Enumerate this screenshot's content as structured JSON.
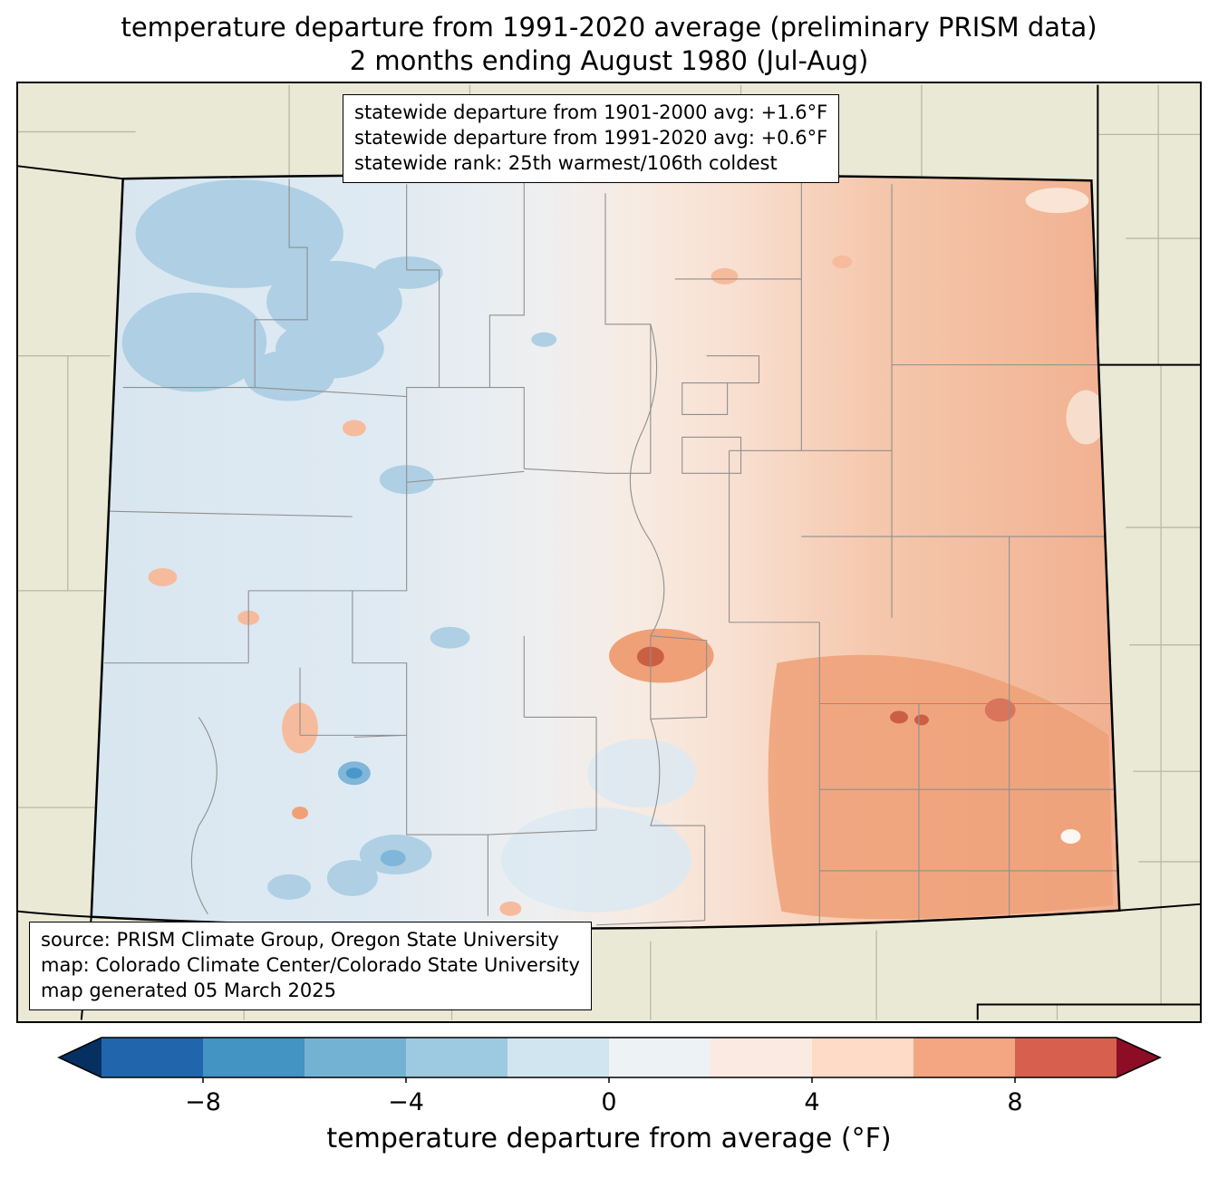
{
  "title": {
    "line1": "temperature departure from 1991-2020 average (preliminary PRISM data)",
    "line2": "2 months ending August 1980 (Jul-Aug)"
  },
  "stats_box": {
    "lines": [
      "statewide departure from 1901-2000 avg: +1.6°F",
      "statewide departure from 1991-2020 avg: +0.6°F",
      "statewide rank: 25th warmest/106th coldest"
    ]
  },
  "source_box": {
    "lines": [
      "source: PRISM Climate Group, Oregon State University",
      "map: Colorado Climate Center/Colorado State University",
      "map generated 05 March 2025"
    ]
  },
  "colorbar": {
    "label": "temperature departure from average (°F)",
    "range": [
      -10,
      10
    ],
    "ticks": [
      {
        "value": -8,
        "label": "−8"
      },
      {
        "value": -4,
        "label": "−4"
      },
      {
        "value": 0,
        "label": "0"
      },
      {
        "value": 4,
        "label": "4"
      },
      {
        "value": 8,
        "label": "8"
      }
    ],
    "segment_colors": [
      "#2166ac",
      "#4393c3",
      "#74b2d4",
      "#9ecae1",
      "#d1e5f0",
      "#edf2f5",
      "#fbeae1",
      "#fddbc7",
      "#f4a582",
      "#d6604d"
    ],
    "left_arrow_color": "#053061",
    "right_arrow_color": "#8c0d25"
  },
  "map": {
    "region": "Colorado with surrounding state county lines",
    "colors": {
      "bg_beige": "#e9e9d6",
      "outer_line": "#b9b9a6",
      "county_line": "#8f8f8f",
      "state_line": "#000000",
      "blue1": "#dde9f2",
      "blue2": "#aecfe4",
      "blue3": "#7fb6d9",
      "blue4": "#4a97cc",
      "pale": "#eeeff0",
      "pink1": "#f8e3d6",
      "salmon1": "#f6bb9c",
      "salmon2": "#efa077",
      "red1": "#cc5f42",
      "red2": "#d8755a"
    }
  }
}
